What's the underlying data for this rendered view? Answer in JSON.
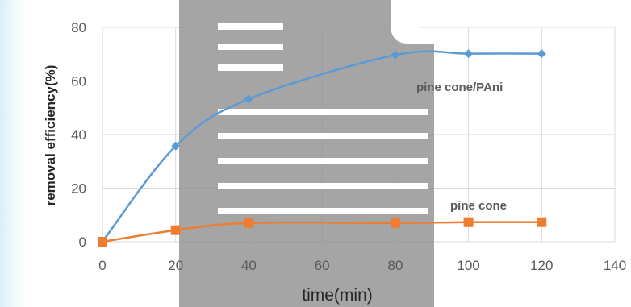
{
  "chart_data": {
    "type": "line",
    "title": "",
    "xlabel": "time(min)",
    "ylabel": "removal efficiency(%)",
    "xlim": [
      0,
      140
    ],
    "ylim": [
      0,
      80
    ],
    "xticks": [
      0,
      20,
      40,
      60,
      80,
      100,
      120,
      140
    ],
    "yticks": [
      0,
      20,
      40,
      60,
      80
    ],
    "grid": true,
    "x": [
      0,
      20,
      40,
      80,
      100,
      120
    ],
    "series": [
      {
        "name": "pine cone/PAni",
        "values": [
          0,
          35.7,
          53.3,
          69.7,
          70.2,
          70.2
        ],
        "color": "#5b9bd5",
        "marker": "diamond"
      },
      {
        "name": "pine cone",
        "values": [
          0,
          4.3,
          7.0,
          7.0,
          7.3,
          7.3
        ],
        "color": "#ed7d31",
        "marker": "square"
      }
    ]
  }
}
